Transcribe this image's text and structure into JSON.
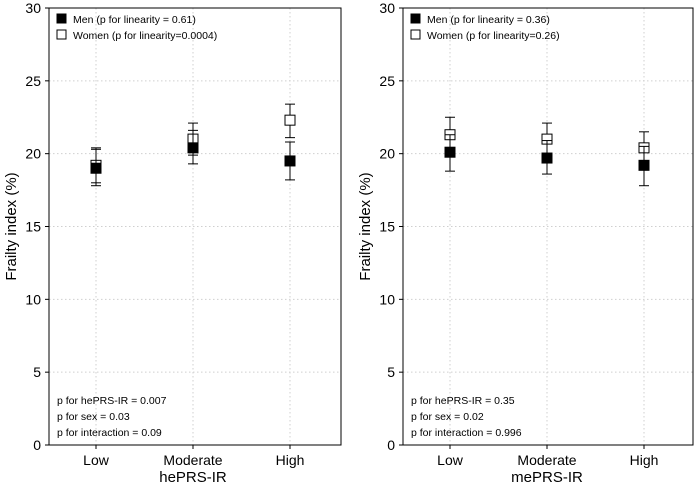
{
  "chart_data": [
    {
      "type": "scatter",
      "ylabel": "Frailty index (%)",
      "xlabel": "hePRS-IR",
      "ylim": [
        0,
        30
      ],
      "yticks": [
        0,
        5,
        10,
        15,
        20,
        25,
        30
      ],
      "categories": [
        "Low",
        "Moderate",
        "High"
      ],
      "grid": true,
      "legend_position": "top-left",
      "series": [
        {
          "name": "Men (p for linearity = 0.61)",
          "marker": "filled-square",
          "color": "#000000",
          "values": [
            19.0,
            20.4,
            19.5
          ],
          "ci_low": [
            17.8,
            19.3,
            18.2
          ],
          "ci_high": [
            20.3,
            21.6,
            20.8
          ]
        },
        {
          "name": "Women (p for linearity=0.0004)",
          "marker": "open-square",
          "color": "#000000",
          "values": [
            19.2,
            21.0,
            22.3
          ],
          "ci_low": [
            18.0,
            19.9,
            21.1
          ],
          "ci_high": [
            20.4,
            22.1,
            23.4
          ]
        }
      ],
      "annotations": [
        "p for hePRS-IR = 0.007",
        "p for sex = 0.03",
        "p for interaction = 0.09"
      ]
    },
    {
      "type": "scatter",
      "ylabel": "Frailty index (%)",
      "xlabel": "mePRS-IR",
      "ylim": [
        0,
        30
      ],
      "yticks": [
        0,
        5,
        10,
        15,
        20,
        25,
        30
      ],
      "categories": [
        "Low",
        "Moderate",
        "High"
      ],
      "grid": true,
      "legend_position": "top-left",
      "series": [
        {
          "name": "Men (p for linearity = 0.36)",
          "marker": "filled-square",
          "color": "#000000",
          "values": [
            20.1,
            19.7,
            19.2
          ],
          "ci_low": [
            18.8,
            18.6,
            17.8
          ],
          "ci_high": [
            21.3,
            20.9,
            20.5
          ]
        },
        {
          "name": "Women (p for linearity=0.26)",
          "marker": "open-square",
          "color": "#000000",
          "values": [
            21.3,
            21.0,
            20.4
          ],
          "ci_low": [
            20.2,
            19.9,
            19.2
          ],
          "ci_high": [
            22.5,
            22.1,
            21.5
          ]
        }
      ],
      "annotations": [
        "p for hePRS-IR = 0.35",
        "p for sex = 0.02",
        "p for interaction = 0.996"
      ]
    }
  ]
}
